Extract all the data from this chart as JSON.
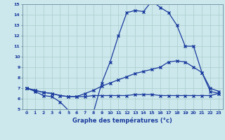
{
  "xlabel": "Graphe des températures (°c)",
  "bg_color": "#cce8ec",
  "line_color": "#1a3a9e",
  "grid_color": "#aacccc",
  "line1_x": [
    0,
    1,
    2,
    3,
    4,
    5,
    6,
    7,
    8,
    9,
    10,
    11,
    12,
    13,
    14,
    15,
    16,
    17,
    18,
    19,
    20,
    21,
    22,
    23
  ],
  "line1_y": [
    7.0,
    6.7,
    6.3,
    6.2,
    5.7,
    4.9,
    4.7,
    4.7,
    4.7,
    7.5,
    9.5,
    12.0,
    14.2,
    14.4,
    14.3,
    15.3,
    14.7,
    14.2,
    13.0,
    11.0,
    11.0,
    8.5,
    6.7,
    6.5
  ],
  "line2_x": [
    0,
    1,
    2,
    3,
    4,
    5,
    6,
    7,
    8,
    9,
    10,
    11,
    12,
    13,
    14,
    15,
    16,
    17,
    18,
    19,
    20,
    21,
    22,
    23
  ],
  "line2_y": [
    7.0,
    6.8,
    6.6,
    6.5,
    6.3,
    6.2,
    6.2,
    6.5,
    6.8,
    7.2,
    7.5,
    7.8,
    8.1,
    8.4,
    8.6,
    8.8,
    9.0,
    9.5,
    9.6,
    9.5,
    9.0,
    8.5,
    7.0,
    6.7
  ],
  "line3_x": [
    0,
    1,
    2,
    3,
    4,
    5,
    6,
    7,
    8,
    9,
    10,
    11,
    12,
    13,
    14,
    15,
    16,
    17,
    18,
    19,
    20,
    21,
    22,
    23
  ],
  "line3_y": [
    7.0,
    6.8,
    6.6,
    6.5,
    6.3,
    6.2,
    6.2,
    6.2,
    6.3,
    6.3,
    6.3,
    6.3,
    6.3,
    6.4,
    6.4,
    6.4,
    6.3,
    6.3,
    6.3,
    6.3,
    6.3,
    6.3,
    6.3,
    6.5
  ],
  "ylim": [
    5,
    15
  ],
  "xlim": [
    0,
    23
  ],
  "yticks": [
    5,
    6,
    7,
    8,
    9,
    10,
    11,
    12,
    13,
    14,
    15
  ],
  "xticks": [
    0,
    1,
    2,
    3,
    4,
    5,
    6,
    7,
    8,
    9,
    10,
    11,
    12,
    13,
    14,
    15,
    16,
    17,
    18,
    19,
    20,
    21,
    22,
    23
  ]
}
